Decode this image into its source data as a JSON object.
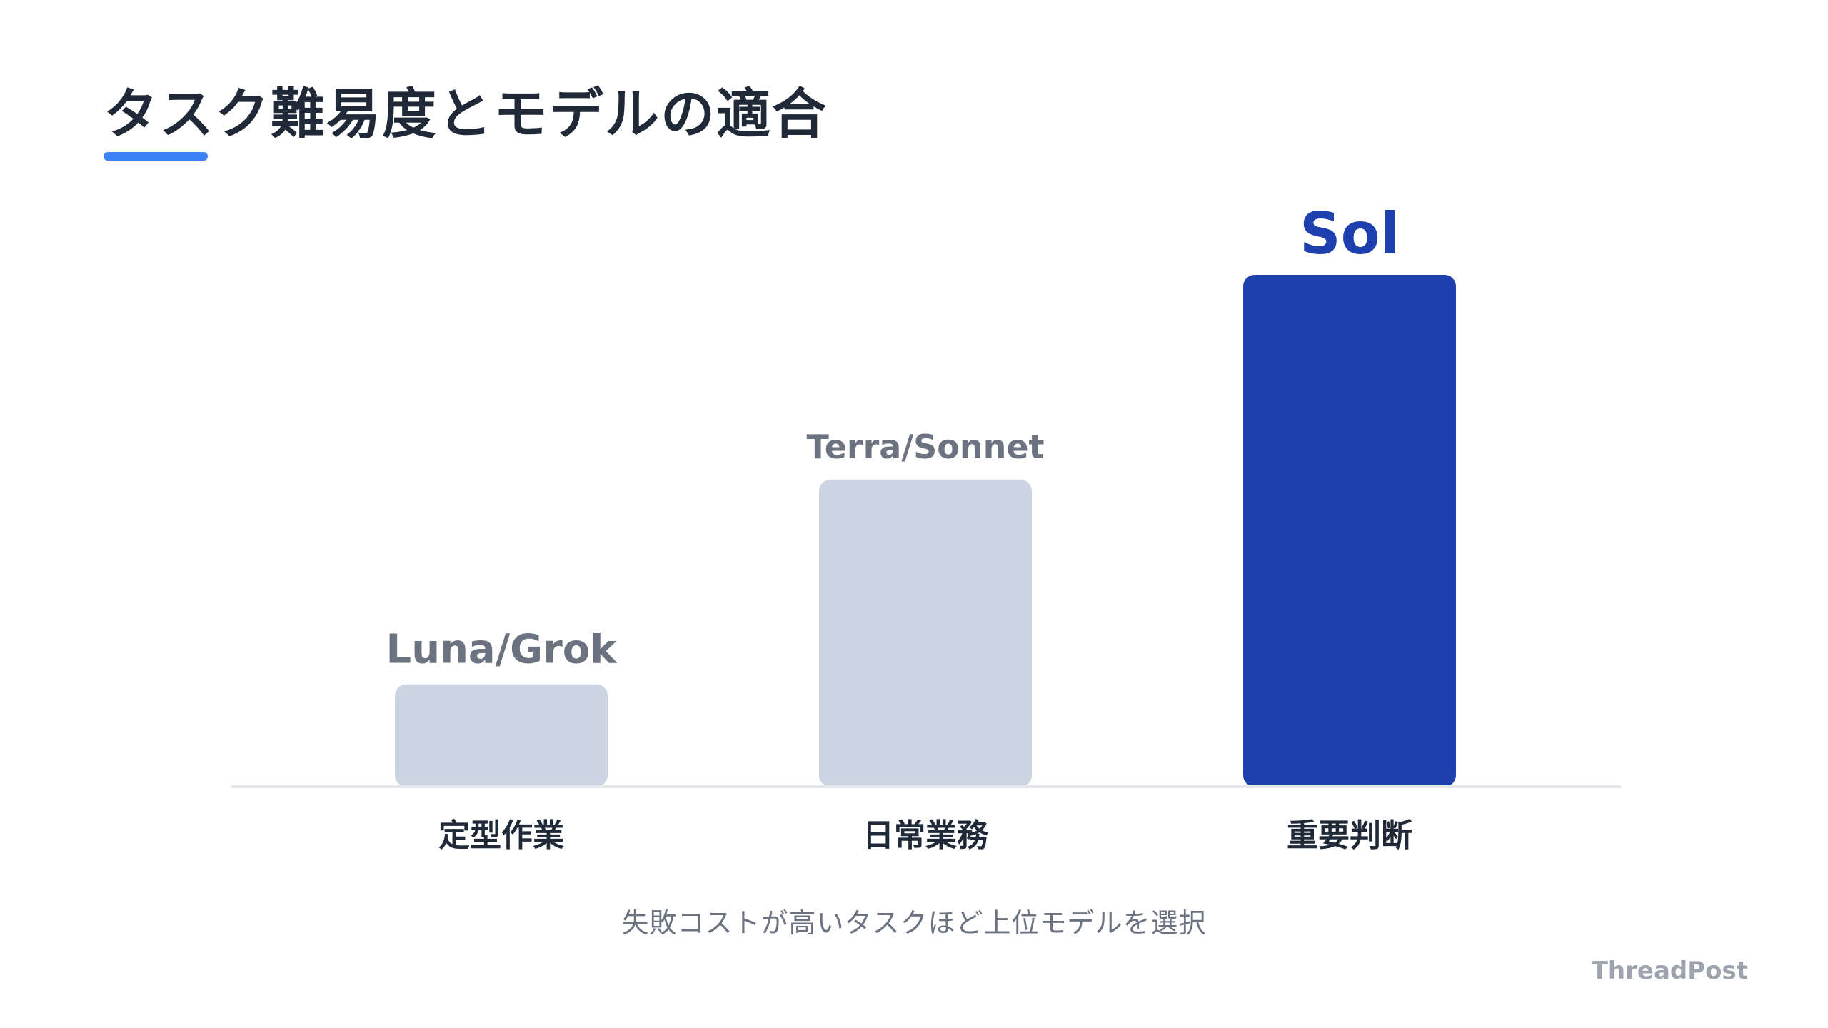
{
  "slide": {
    "title": "タスク難易度とモデルの適合",
    "caption": "失敗コストが高いタスクほど上位モデルを選択",
    "brand": "ThreadPost"
  },
  "colors": {
    "accent": "#3b82f6",
    "highlight_bar": "#1e40af",
    "muted_bar": "#cbd5e1",
    "muted_label": "#6b7280",
    "title": "#1f2937"
  },
  "chart_data": {
    "type": "bar",
    "categories": [
      "定型作業",
      "日常業務",
      "重要判断"
    ],
    "values": [
      1,
      3,
      5
    ],
    "bar_labels": [
      "Luna/Grok",
      "Terra/Sonnet",
      "Sol"
    ],
    "highlight_index": 2,
    "ylim": [
      0,
      5
    ],
    "grid": false,
    "legend": "none",
    "title": "",
    "xlabel": "",
    "ylabel": ""
  }
}
